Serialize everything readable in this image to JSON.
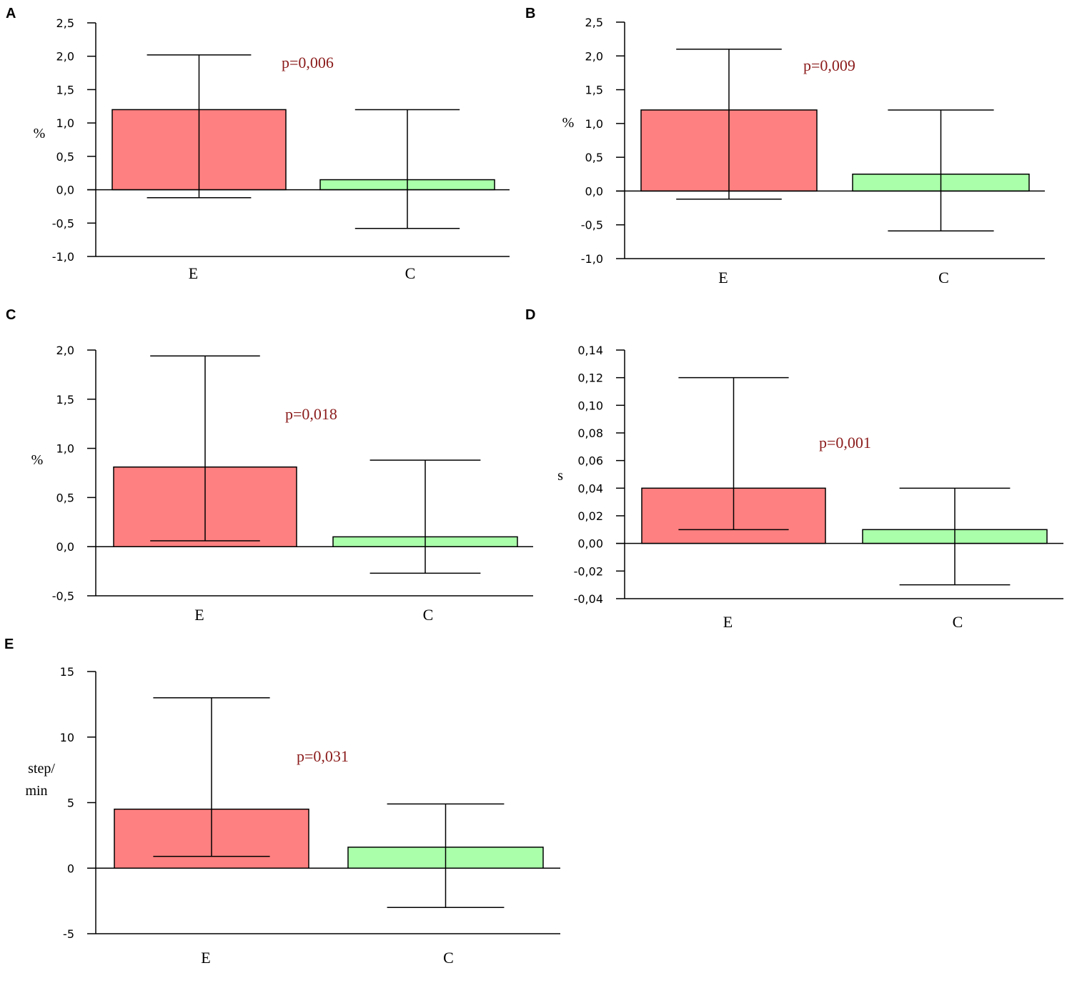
{
  "colors": {
    "bar_e": "#ff8080",
    "bar_c": "#aaffaa",
    "pvalue": "#8b1a1a",
    "axis": "#000000"
  },
  "chart_data": [
    {
      "panel": "A",
      "type": "bar",
      "categories": [
        "E",
        "C"
      ],
      "values": [
        1.2,
        0.15
      ],
      "error_low": [
        -0.12,
        -0.58
      ],
      "error_high": [
        2.02,
        1.2
      ],
      "ylabel": "%",
      "ylim": [
        -1.0,
        2.5
      ],
      "yticks": [
        -1.0,
        -0.5,
        0.0,
        0.5,
        1.0,
        1.5,
        2.0,
        2.5
      ],
      "ytick_labels": [
        "-1,0",
        "-0,5",
        "0,0",
        "0,5",
        "1,0",
        "1,5",
        "2,0",
        "2,5"
      ],
      "annotation": "p=0,006"
    },
    {
      "panel": "B",
      "type": "bar",
      "categories": [
        "E",
        "C"
      ],
      "values": [
        1.2,
        0.25
      ],
      "error_low": [
        -0.12,
        -0.59
      ],
      "error_high": [
        2.1,
        1.2
      ],
      "ylabel": "%",
      "ylim": [
        -1.0,
        2.5
      ],
      "yticks": [
        -1.0,
        -0.5,
        0.0,
        0.5,
        1.0,
        1.5,
        2.0,
        2.5
      ],
      "ytick_labels": [
        "-1,0",
        "-0,5",
        "0,0",
        "0,5",
        "1,0",
        "1,5",
        "2,0",
        "2,5"
      ],
      "annotation": "p=0,009"
    },
    {
      "panel": "C",
      "type": "bar",
      "categories": [
        "E",
        "C"
      ],
      "values": [
        0.81,
        0.1
      ],
      "error_low": [
        0.06,
        -0.27
      ],
      "error_high": [
        1.94,
        0.88
      ],
      "ylabel": "%",
      "ylim": [
        -0.5,
        2.0
      ],
      "yticks": [
        -0.5,
        0.0,
        0.5,
        1.0,
        1.5,
        2.0
      ],
      "ytick_labels": [
        "-0,5",
        "0,0",
        "0,5",
        "1,0",
        "1,5",
        "2,0"
      ],
      "annotation": "p=0,018"
    },
    {
      "panel": "D",
      "type": "bar",
      "categories": [
        "E",
        "C"
      ],
      "values": [
        0.04,
        0.01
      ],
      "error_low": [
        0.01,
        -0.03
      ],
      "error_high": [
        0.12,
        0.04
      ],
      "ylabel": "s",
      "ylim": [
        -0.04,
        0.14
      ],
      "yticks": [
        -0.04,
        -0.02,
        0.0,
        0.02,
        0.04,
        0.06,
        0.08,
        0.1,
        0.12,
        0.14
      ],
      "ytick_labels": [
        "-0,04",
        "-0,02",
        "0,00",
        "0,02",
        "0,04",
        "0,06",
        "0,08",
        "0,10",
        "0,12",
        "0,14"
      ],
      "annotation": "p=0,001"
    },
    {
      "panel": "E",
      "type": "bar",
      "categories": [
        "E",
        "C"
      ],
      "values": [
        4.5,
        1.6
      ],
      "error_low": [
        0.9,
        -3.0
      ],
      "error_high": [
        13.0,
        4.9
      ],
      "ylabel": "step/ min",
      "ylabel_lines": [
        "step/",
        "min"
      ],
      "ylim": [
        -5,
        15
      ],
      "yticks": [
        -5,
        0,
        5,
        10,
        15
      ],
      "ytick_labels": [
        "-5",
        "0",
        "5",
        "10",
        "15"
      ],
      "annotation": "p=0,031"
    }
  ]
}
